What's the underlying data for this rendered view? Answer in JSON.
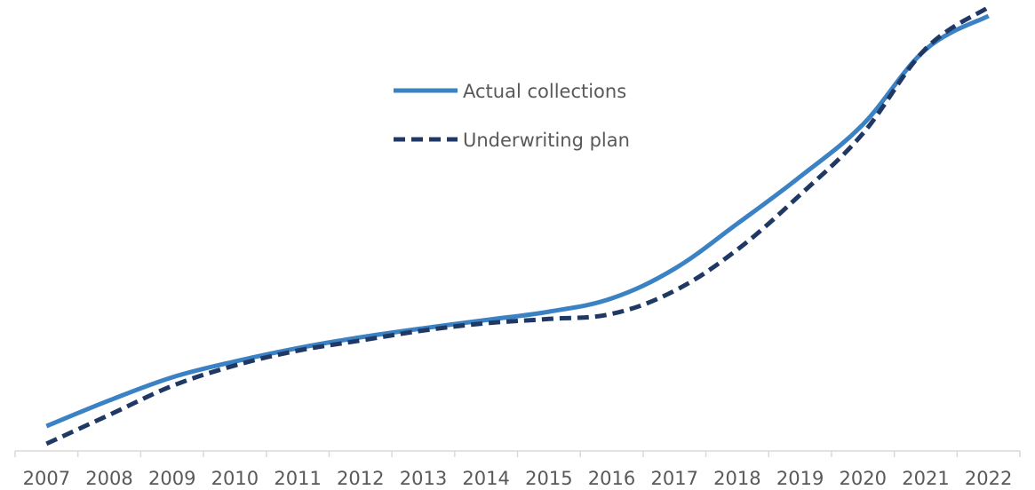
{
  "chart_data": {
    "type": "line",
    "title": "",
    "xlabel": "",
    "ylabel": "",
    "x": [
      "2007",
      "2008",
      "2009",
      "2010",
      "2011",
      "2012",
      "2013",
      "2014",
      "2015",
      "2016",
      "2017",
      "2018",
      "2019",
      "2020",
      "2021",
      "2022"
    ],
    "series": [
      {
        "name": "Actual collections",
        "color": "#3b82c4",
        "style": "solid",
        "values": [
          6.9,
          14.0,
          20.4,
          24.8,
          28.5,
          31.5,
          34.0,
          36.3,
          38.6,
          42.3,
          50.5,
          63.0,
          76.0,
          90.5,
          111.3,
          120.6
        ]
      },
      {
        "name": "Underwriting plan",
        "color": "#1f3864",
        "style": "dashed",
        "values": [
          2.0,
          10.0,
          18.0,
          23.7,
          27.8,
          30.6,
          33.4,
          35.4,
          36.6,
          38.0,
          44.4,
          55.8,
          71.0,
          88.0,
          111.5,
          123.0
        ]
      }
    ],
    "ylim": [
      0,
      125
    ],
    "grid": false,
    "legend": "top-center"
  }
}
